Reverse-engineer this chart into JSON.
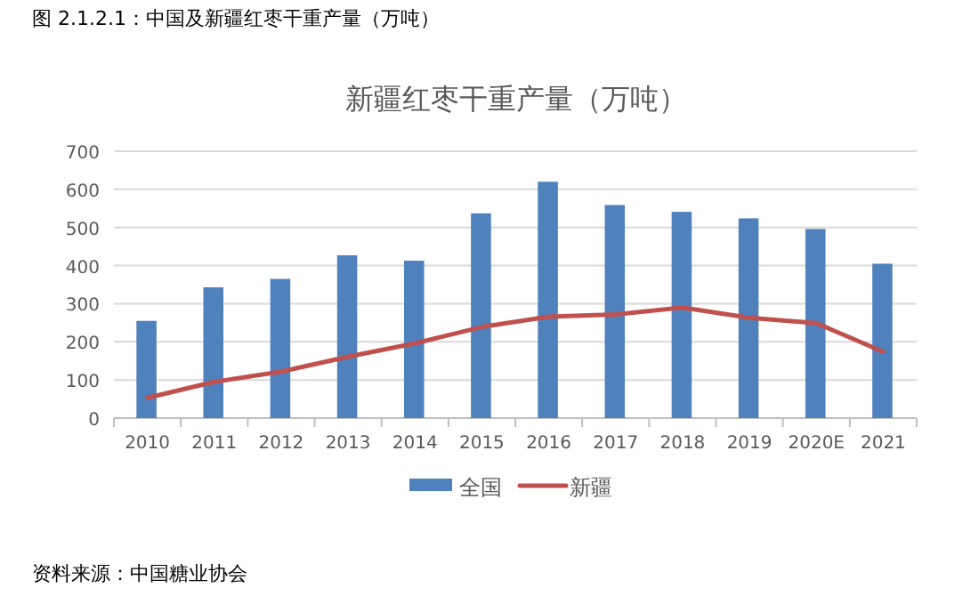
{
  "chart_data": {
    "type": "bar",
    "title": "新疆红枣干重产量（万吨）",
    "annotations": [
      "图 2.1.2.1：中国及新疆红枣干重产量（万吨）",
      "资料来源：中国糖业协会"
    ],
    "categories": [
      "2010",
      "2011",
      "2012",
      "2013",
      "2014",
      "2015",
      "2016",
      "2017",
      "2018",
      "2019",
      "2020E",
      "2021"
    ],
    "series": [
      {
        "name": "全国",
        "color": "#4f81bd",
        "values": [
          255,
          343,
          365,
          427,
          413,
          537,
          620,
          559,
          541,
          524,
          496,
          405
        ]
      },
      {
        "name": "新疆",
        "type": "line",
        "color": "#c0504d",
        "values": [
          53,
          95,
          122,
          161,
          196,
          239,
          266,
          272,
          290,
          263,
          249,
          174
        ]
      }
    ],
    "ylim": [
      0,
      700
    ],
    "yticks": [
      0,
      100,
      200,
      300,
      400,
      500,
      600,
      700
    ],
    "grid": "y",
    "legend": "bottom",
    "marker": "none",
    "line_style": "solid"
  }
}
